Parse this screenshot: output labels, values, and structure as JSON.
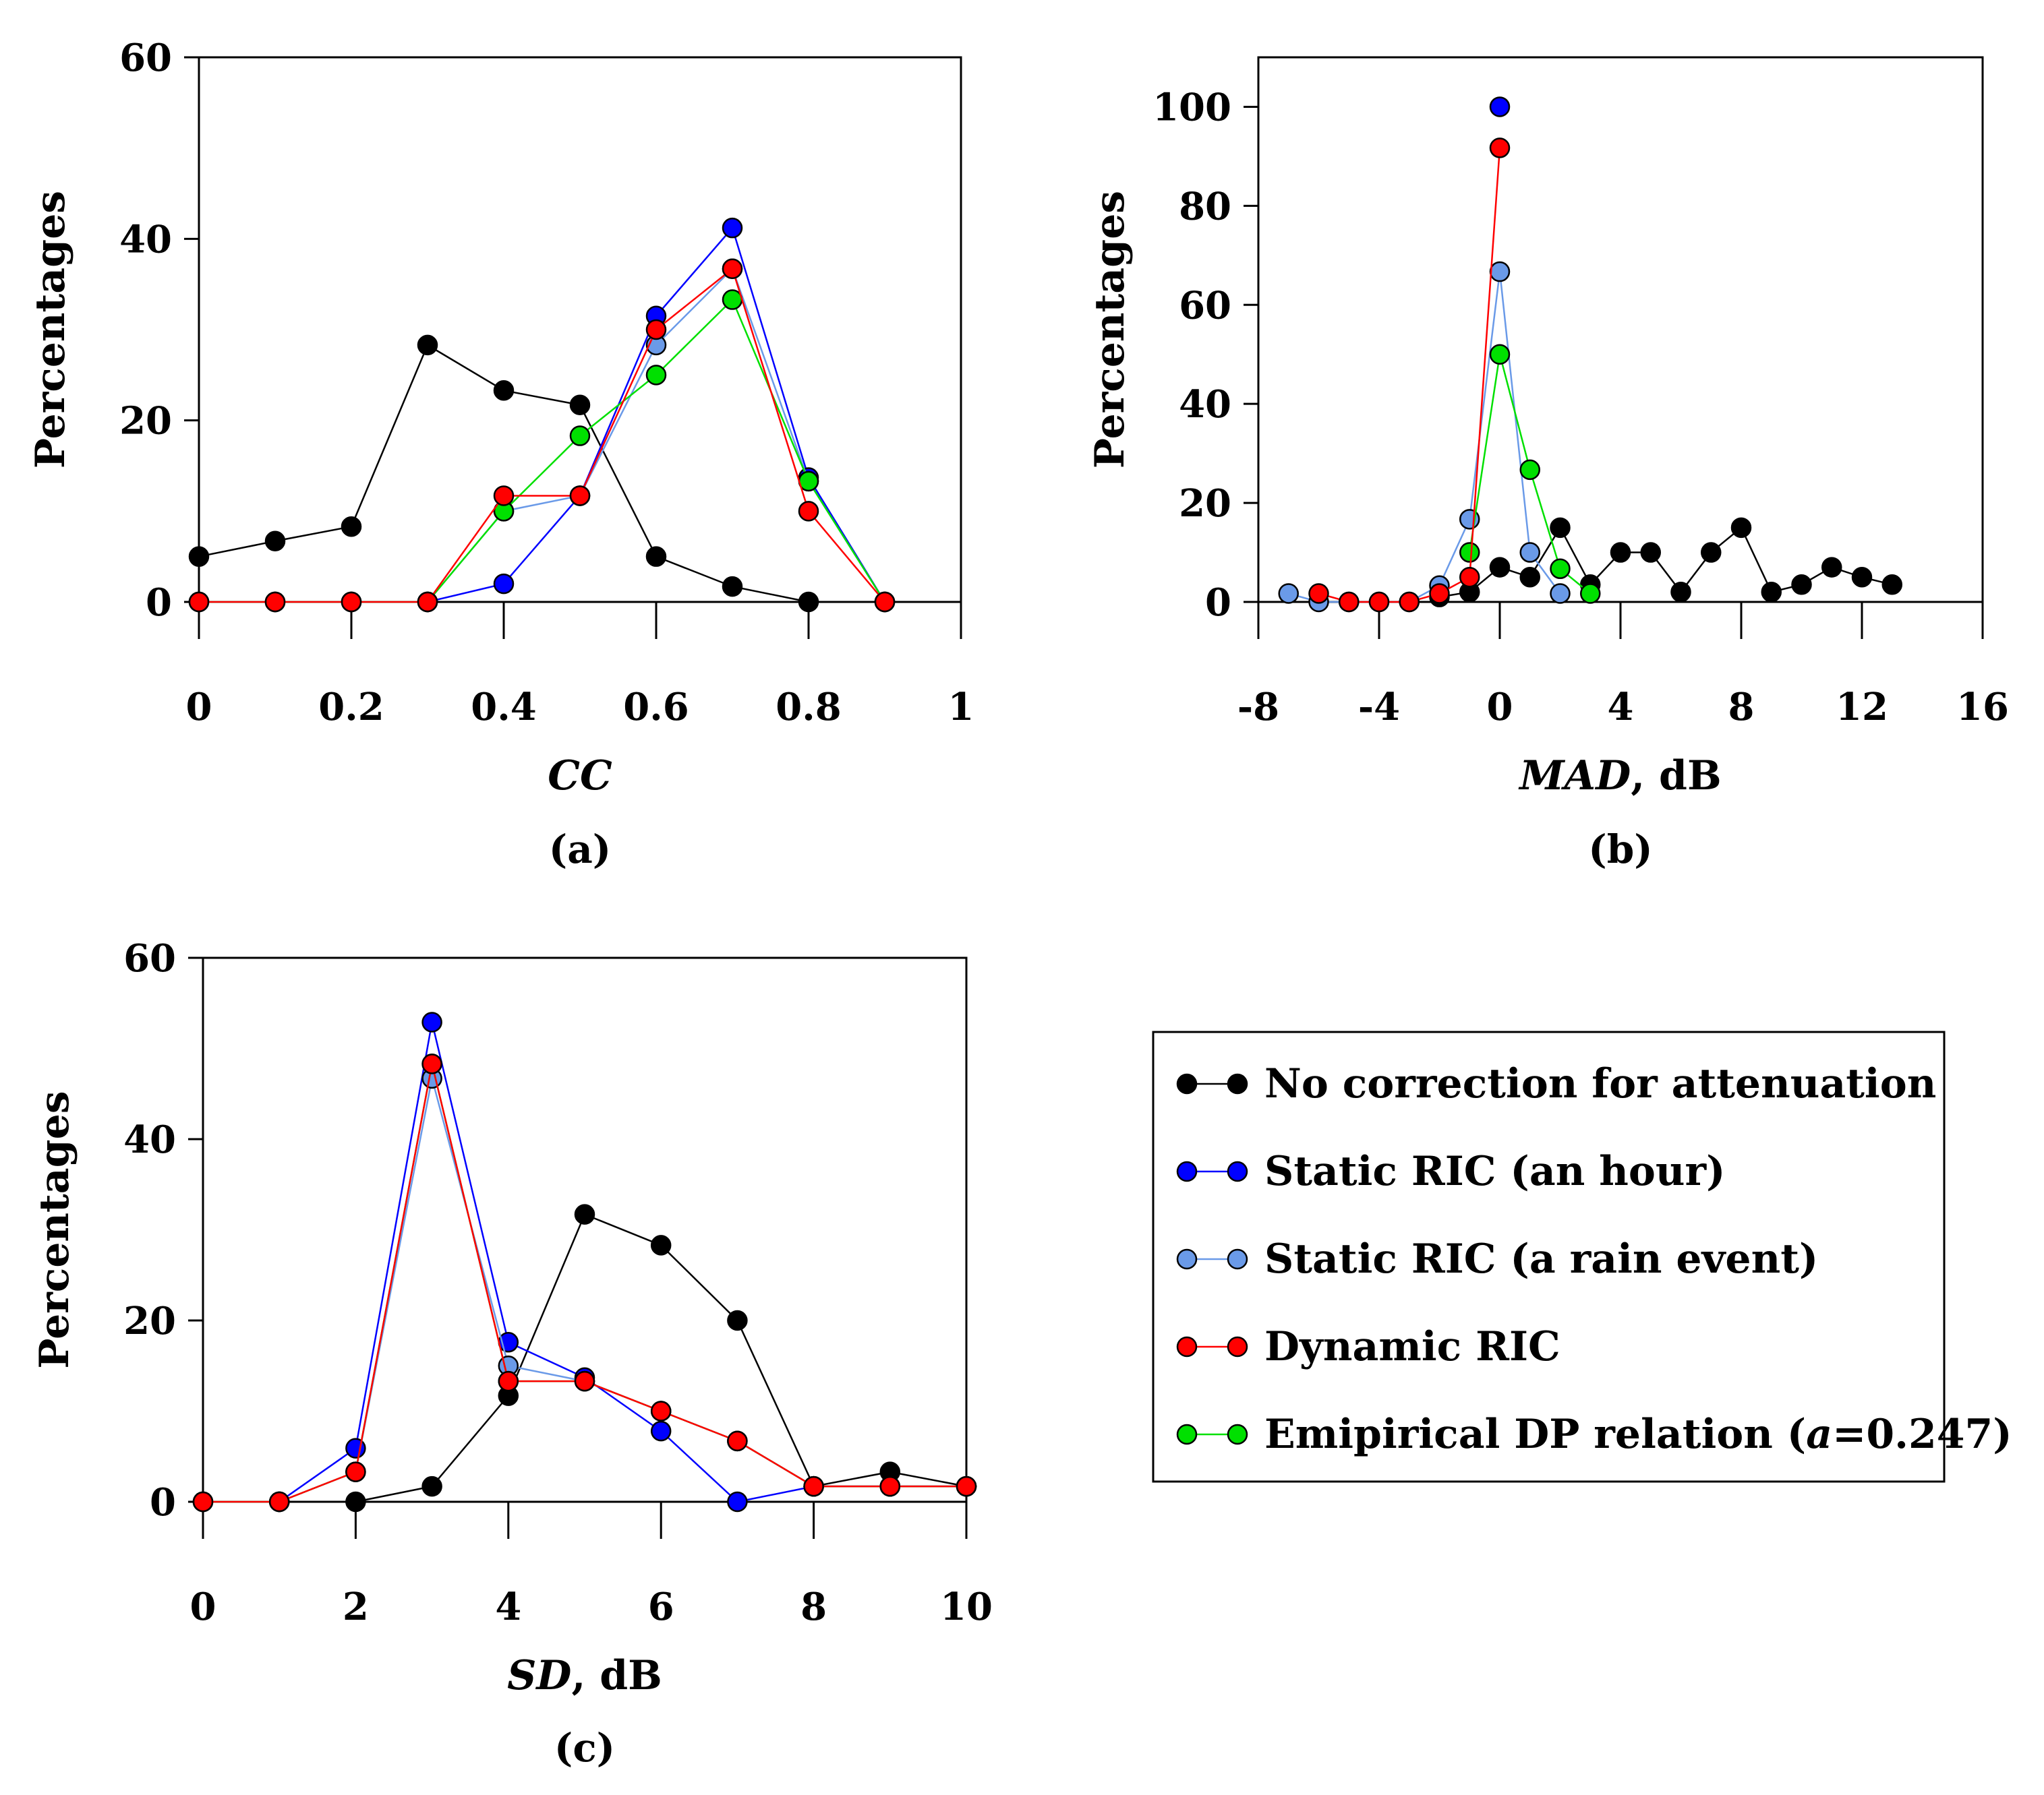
{
  "colors": {
    "no_correction": "#000000",
    "static_hour": "#0000ff",
    "static_event": "#6a9ae8",
    "dynamic": "#ff0000",
    "empirical": "#00e000"
  },
  "legend": {
    "items": [
      {
        "key": "no_correction",
        "label": "No correction for attenuation"
      },
      {
        "key": "static_hour",
        "label": "Static RIC (an hour)"
      },
      {
        "key": "static_event",
        "label": "Static RIC (a rain event)"
      },
      {
        "key": "dynamic",
        "label": "Dynamic RIC"
      },
      {
        "key": "empirical",
        "label_prefix": "Emipirical DP relation (",
        "label_italic": "a",
        "label_suffix": "=0.247)"
      }
    ]
  },
  "chart_data": [
    {
      "type": "line",
      "panel_label": "(a)",
      "xlabel_italic": "CC",
      "xlabel_suffix": "",
      "ylabel": "Percentages",
      "xlim": [
        0,
        1
      ],
      "ylim": [
        0,
        60
      ],
      "xticks": [
        0,
        0.2,
        0.4,
        0.6,
        0.8,
        1
      ],
      "xtick_labels": [
        "0",
        "0.2",
        "0.4",
        "0.6",
        "0.8",
        "1"
      ],
      "yticks": [
        0,
        20,
        40,
        60
      ],
      "ytick_labels": [
        "0",
        "20",
        "40",
        "60"
      ],
      "series": [
        {
          "key": "no_correction",
          "x": [
            0,
            0.1,
            0.2,
            0.3,
            0.4,
            0.5,
            0.6,
            0.7,
            0.8,
            0.9
          ],
          "y": [
            5,
            6.7,
            8.3,
            28.3,
            23.3,
            21.7,
            5,
            1.7,
            0,
            0
          ]
        },
        {
          "key": "static_hour",
          "x": [
            0,
            0.1,
            0.2,
            0.3,
            0.4,
            0.5,
            0.6,
            0.7,
            0.8,
            0.9
          ],
          "y": [
            0,
            0,
            0,
            0,
            2,
            11.7,
            31.5,
            41.2,
            13.7,
            0
          ]
        },
        {
          "key": "static_event",
          "x": [
            0,
            0.1,
            0.2,
            0.3,
            0.4,
            0.5,
            0.6,
            0.7,
            0.8,
            0.9
          ],
          "y": [
            0,
            0,
            0,
            0,
            10,
            11.7,
            28.3,
            36.7,
            13.3,
            0
          ]
        },
        {
          "key": "empirical",
          "x": [
            0,
            0.1,
            0.2,
            0.3,
            0.4,
            0.5,
            0.6,
            0.7,
            0.8,
            0.9
          ],
          "y": [
            0,
            0,
            0,
            0,
            10,
            18.3,
            25,
            33.3,
            13.3,
            0
          ]
        },
        {
          "key": "dynamic",
          "x": [
            0,
            0.1,
            0.2,
            0.3,
            0.4,
            0.5,
            0.6,
            0.7,
            0.8,
            0.9
          ],
          "y": [
            0,
            0,
            0,
            0,
            11.7,
            11.7,
            30,
            36.7,
            10,
            0
          ]
        }
      ]
    },
    {
      "type": "line",
      "panel_label": "(b)",
      "xlabel_italic": "MAD",
      "xlabel_suffix": ", dB",
      "ylabel": "Percentages",
      "xlim": [
        -8,
        16
      ],
      "ylim": [
        0,
        110
      ],
      "xticks": [
        -8,
        -4,
        0,
        4,
        8,
        12,
        16
      ],
      "xtick_labels": [
        "-8",
        "-4",
        "0",
        "4",
        "8",
        "12",
        "16"
      ],
      "yticks": [
        0,
        20,
        40,
        60,
        80,
        100
      ],
      "ytick_labels": [
        "0",
        "20",
        "40",
        "60",
        "80",
        "100"
      ],
      "series": [
        {
          "key": "no_correction",
          "x": [
            -2,
            -1,
            0,
            1,
            2,
            3,
            4,
            5,
            6,
            7,
            8,
            9,
            10,
            11,
            12,
            13
          ],
          "y": [
            1,
            2,
            7,
            5,
            15,
            3.5,
            10,
            10,
            2,
            10,
            15,
            2,
            3.5,
            7,
            5,
            3.5
          ]
        },
        {
          "key": "static_event",
          "x": [
            -7,
            -6,
            -5,
            -4,
            -3,
            -2,
            -1,
            0,
            1,
            2
          ],
          "y": [
            1.7,
            0,
            0,
            0,
            0,
            3.3,
            16.7,
            66.7,
            10,
            1.7
          ]
        },
        {
          "key": "empirical",
          "x": [
            -1,
            0,
            1,
            2,
            3
          ],
          "y": [
            10,
            50,
            26.7,
            6.7,
            1.7
          ]
        },
        {
          "key": "dynamic",
          "x": [
            -6,
            -5,
            -4,
            -3,
            -2,
            -1,
            0
          ],
          "y": [
            1.7,
            0,
            0,
            0,
            1.7,
            5,
            91.7
          ]
        },
        {
          "key": "static_hour",
          "x": [
            0
          ],
          "y": [
            100
          ]
        }
      ]
    },
    {
      "type": "line",
      "panel_label": "(c)",
      "xlabel_italic": "SD",
      "xlabel_suffix": ", dB",
      "ylabel": "Percentages",
      "xlim": [
        0,
        10
      ],
      "ylim": [
        0,
        60
      ],
      "xticks": [
        0,
        2,
        4,
        6,
        8,
        10
      ],
      "xtick_labels": [
        "0",
        "2",
        "4",
        "6",
        "8",
        "10"
      ],
      "yticks": [
        0,
        20,
        40,
        60
      ],
      "ytick_labels": [
        "0",
        "20",
        "40",
        "60"
      ],
      "series": [
        {
          "key": "no_correction",
          "x": [
            0,
            1,
            2,
            3,
            4,
            5,
            6,
            7,
            8,
            9,
            10
          ],
          "y": [
            0,
            0,
            0,
            1.7,
            11.7,
            31.7,
            28.3,
            20,
            1.7,
            3.3,
            1.7
          ]
        },
        {
          "key": "static_hour",
          "x": [
            0,
            1,
            2,
            3,
            4,
            5,
            6,
            7,
            8,
            9,
            10
          ],
          "y": [
            0,
            0,
            5.9,
            52.9,
            17.6,
            13.7,
            7.8,
            0,
            1.7,
            1.7,
            1.7
          ]
        },
        {
          "key": "static_event",
          "x": [
            0,
            1,
            2,
            3,
            4,
            5,
            6,
            7,
            8,
            9,
            10
          ],
          "y": [
            0,
            0,
            3.3,
            46.7,
            15,
            13.3,
            10,
            6.7,
            1.7,
            1.7,
            1.7
          ]
        },
        {
          "key": "empirical",
          "x": [
            0,
            1,
            2,
            3,
            4,
            5,
            6,
            7,
            8,
            9,
            10
          ],
          "y": [
            0,
            0,
            3.3,
            48.3,
            13.3,
            13.3,
            10,
            6.7,
            1.7,
            1.7,
            1.7
          ]
        },
        {
          "key": "dynamic",
          "x": [
            0,
            1,
            2,
            3,
            4,
            5,
            6,
            7,
            8,
            9,
            10
          ],
          "y": [
            0,
            0,
            3.3,
            48.3,
            13.3,
            13.3,
            10,
            6.7,
            1.7,
            1.7,
            1.7
          ]
        }
      ]
    }
  ]
}
